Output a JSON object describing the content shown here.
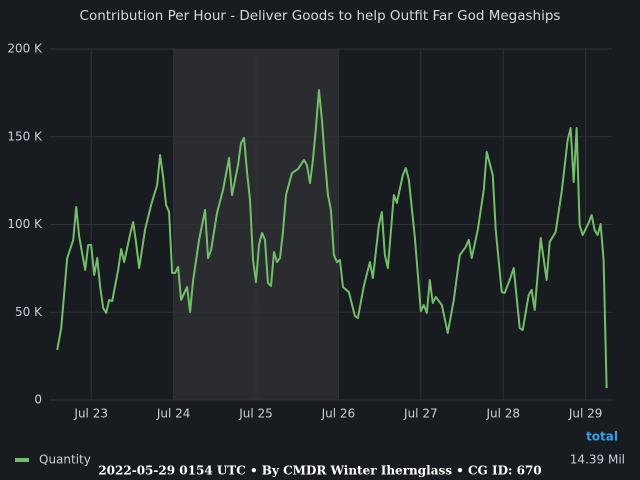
{
  "chart_data": {
    "type": "line",
    "title": "Contribution Per Hour - Deliver Goods to help Outfit Far God Megaships",
    "x": [
      22.588,
      22.636,
      22.709,
      22.782,
      22.818,
      22.855,
      22.927,
      22.964,
      23.0,
      23.036,
      23.073,
      23.109,
      23.145,
      23.182,
      23.218,
      23.255,
      23.327,
      23.364,
      23.4,
      23.473,
      23.509,
      23.545,
      23.582,
      23.655,
      23.727,
      23.8,
      23.836,
      23.873,
      23.909,
      23.945,
      23.982,
      24.018,
      24.055,
      24.091,
      24.164,
      24.2,
      24.236,
      24.309,
      24.382,
      24.418,
      24.455,
      24.527,
      24.6,
      24.673,
      24.709,
      24.782,
      24.818,
      24.855,
      24.891,
      24.927,
      24.964,
      25.0,
      25.036,
      25.073,
      25.109,
      25.145,
      25.182,
      25.218,
      25.255,
      25.291,
      25.327,
      25.364,
      25.436,
      25.509,
      25.582,
      25.618,
      25.655,
      25.691,
      25.727,
      25.764,
      25.8,
      25.836,
      25.873,
      25.909,
      25.945,
      25.982,
      26.018,
      26.055,
      26.127,
      26.2,
      26.236,
      26.309,
      26.382,
      26.418,
      26.491,
      26.527,
      26.564,
      26.6,
      26.673,
      26.709,
      26.782,
      26.818,
      26.855,
      26.927,
      27.0,
      27.036,
      27.073,
      27.109,
      27.145,
      27.182,
      27.255,
      27.327,
      27.4,
      27.473,
      27.545,
      27.582,
      27.618,
      27.691,
      27.764,
      27.8,
      27.873,
      27.909,
      27.982,
      28.018,
      28.091,
      28.127,
      28.164,
      28.2,
      28.236,
      28.309,
      28.345,
      28.382,
      28.455,
      28.527,
      28.564,
      28.636,
      28.709,
      28.782,
      28.818,
      28.855,
      28.891,
      28.927,
      28.964,
      29.036,
      29.073,
      29.109,
      29.145,
      29.182,
      29.218,
      29.255
    ],
    "series": [
      {
        "name": "Quantity",
        "color": "#73bf69",
        "values": [
          28500,
          41000,
          80900,
          91200,
          110000,
          92900,
          74100,
          88300,
          88300,
          71200,
          80900,
          64400,
          52400,
          49600,
          57000,
          56400,
          74100,
          86000,
          78600,
          94600,
          101400,
          89500,
          75200,
          97400,
          111100,
          122500,
          139600,
          127100,
          111100,
          107100,
          72400,
          72400,
          75800,
          57000,
          64400,
          50100,
          67800,
          91200,
          108300,
          80900,
          85500,
          106600,
          119700,
          137900,
          116800,
          133900,
          146400,
          149300,
          129900,
          114000,
          79800,
          67200,
          88300,
          95200,
          91200,
          66700,
          65000,
          84300,
          78600,
          80900,
          95700,
          116800,
          129300,
          131600,
          136800,
          133900,
          123600,
          136800,
          155000,
          176600,
          159500,
          136800,
          116800,
          108300,
          82600,
          78600,
          79800,
          64400,
          61500,
          47900,
          46700,
          65000,
          78600,
          69500,
          99700,
          107100,
          82600,
          75200,
          116800,
          112300,
          128200,
          132200,
          125400,
          92900,
          50700,
          54100,
          49600,
          68400,
          55300,
          58700,
          54100,
          38200,
          57000,
          82600,
          87200,
          91200,
          80900,
          96900,
          119700,
          141300,
          128200,
          96900,
          61500,
          61000,
          70100,
          75200,
          58100,
          41000,
          39900,
          59800,
          62700,
          51300,
          92300,
          68400,
          90000,
          95700,
          118500,
          148100,
          155000,
          124200,
          155000,
          99700,
          94000,
          100900,
          105400,
          96900,
          94000,
          100300,
          79800,
          6800
        ],
        "total": 14390000,
        "total_label": "14.39 Mil"
      }
    ],
    "legend_header": "total",
    "xlim": [
      22.5,
      29.32
    ],
    "xticks": [
      {
        "value": 23,
        "label": "Jul 23"
      },
      {
        "value": 24,
        "label": "Jul 24"
      },
      {
        "value": 25,
        "label": "Jul 25"
      },
      {
        "value": 26,
        "label": "Jul 26"
      },
      {
        "value": 27,
        "label": "Jul 27"
      },
      {
        "value": 28,
        "label": "Jul 28"
      },
      {
        "value": 29,
        "label": "Jul 29"
      }
    ],
    "ylim": [
      0,
      200000
    ],
    "yticks": [
      0,
      {
        "value": 50000,
        "label": "50 K"
      },
      {
        "value": 100000,
        "label": "100 K"
      },
      {
        "value": 150000,
        "label": "150 K"
      },
      {
        "value": 200000,
        "label": "200 K"
      }
    ],
    "highlight_xlim": [
      24,
      26
    ],
    "grid": true,
    "footer": "2022-05-29 0154 UTC • By CMDR Winter Ihernglass • CG ID: 670"
  }
}
